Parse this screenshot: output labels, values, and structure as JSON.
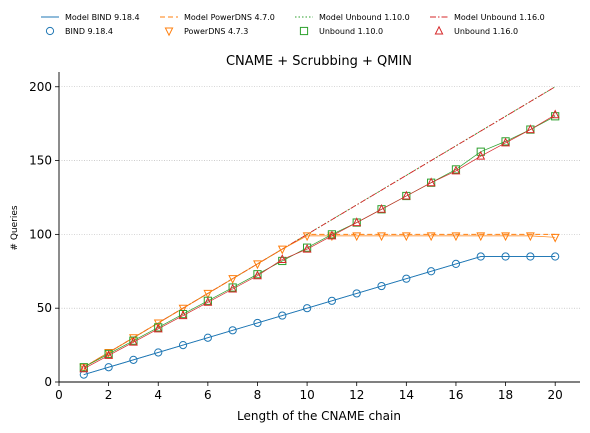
{
  "chart_data": {
    "type": "line",
    "title": "CNAME + Scrubbing + QMIN",
    "xlabel": "Length of the CNAME chain",
    "ylabel": "# Queries",
    "xlim": [
      0,
      21
    ],
    "ylim": [
      0,
      210
    ],
    "xticks": [
      "0",
      "2",
      "4",
      "6",
      "8",
      "10",
      "12",
      "14",
      "16",
      "18",
      "20"
    ],
    "yticks": [
      "0",
      "50",
      "100",
      "150",
      "200"
    ],
    "grid": "horizontal dotted",
    "legend_position": "top",
    "x": [
      1,
      2,
      3,
      4,
      5,
      6,
      7,
      8,
      9,
      10,
      11,
      12,
      13,
      14,
      15,
      16,
      17,
      18,
      19,
      20
    ],
    "series": [
      {
        "name": "Model BIND 9.18.4",
        "kind": "model",
        "color": "#1f77b4",
        "dash": "solid",
        "values": [
          5,
          10,
          15,
          20,
          25,
          30,
          35,
          40,
          45,
          50,
          55,
          60,
          65,
          70,
          75,
          80,
          85,
          85,
          85,
          85
        ]
      },
      {
        "name": "Model PowerDNS 4.7.0",
        "kind": "model",
        "color": "#ff7f0e",
        "dash": "dashed",
        "values": [
          10,
          20,
          30,
          40,
          50,
          60,
          70,
          80,
          90,
          100,
          100,
          100,
          100,
          100,
          100,
          100,
          100,
          100,
          100,
          100
        ]
      },
      {
        "name": "Model Unbound 1.10.0",
        "kind": "model",
        "color": "#2ca02c",
        "dash": "dotted",
        "values": [
          10,
          20,
          30,
          40,
          50,
          60,
          70,
          80,
          90,
          100,
          110,
          120,
          130,
          140,
          150,
          160,
          170,
          180,
          190,
          200
        ]
      },
      {
        "name": "Model Unbound 1.16.0",
        "kind": "model",
        "color": "#d62728",
        "dash": "dashdot",
        "values": [
          10,
          20,
          30,
          40,
          50,
          60,
          70,
          80,
          90,
          100,
          110,
          120,
          130,
          140,
          150,
          160,
          170,
          180,
          190,
          200
        ]
      },
      {
        "name": "BIND 9.18.4",
        "kind": "measured",
        "color": "#1f77b4",
        "marker": "circle",
        "values": [
          5,
          10,
          15,
          20,
          25,
          30,
          35,
          40,
          45,
          50,
          55,
          60,
          65,
          70,
          75,
          80,
          85,
          85,
          85,
          85
        ]
      },
      {
        "name": "PowerDNS 4.7.3",
        "kind": "measured",
        "color": "#ff7f0e",
        "marker": "triangle-down",
        "values": [
          10,
          20,
          30,
          40,
          50,
          60,
          70,
          80,
          90,
          99,
          99,
          99,
          99,
          99,
          99,
          99,
          99,
          99,
          99,
          98
        ]
      },
      {
        "name": "Unbound 1.10.0",
        "kind": "measured",
        "color": "#2ca02c",
        "marker": "square",
        "values": [
          10,
          19,
          28,
          37,
          46,
          55,
          64,
          73,
          82,
          91,
          100,
          108,
          117,
          126,
          135,
          144,
          156,
          163,
          171,
          180
        ]
      },
      {
        "name": "Unbound 1.16.0",
        "kind": "measured",
        "color": "#d62728",
        "marker": "triangle-up",
        "values": [
          9,
          18,
          27,
          36,
          45,
          54,
          63,
          72,
          83,
          90,
          99,
          108,
          117,
          126,
          135,
          143,
          153,
          162,
          171,
          181
        ]
      }
    ]
  }
}
